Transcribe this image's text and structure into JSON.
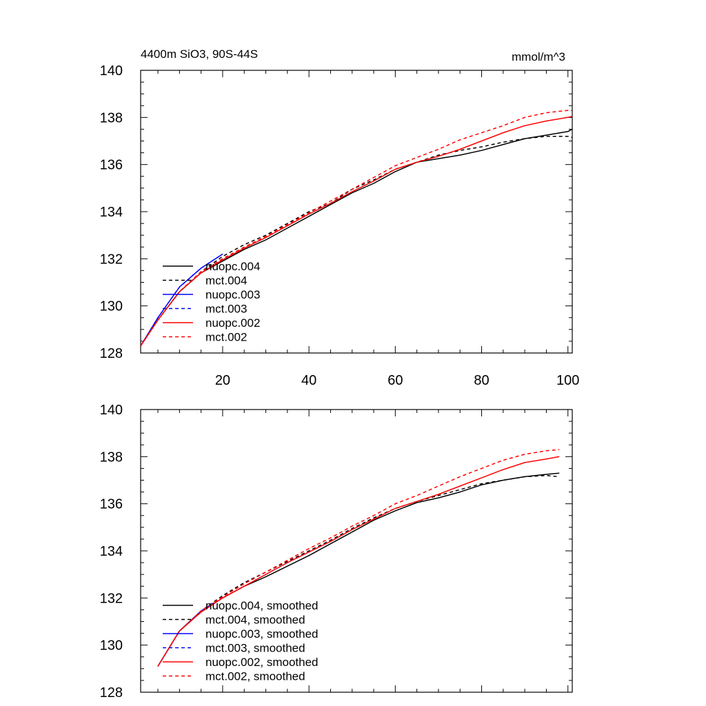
{
  "chart_data": [
    {
      "type": "line",
      "title_left": "4400m SiO3, 90S-44S",
      "title_right": "mmol/m^3",
      "xlim": [
        1,
        101
      ],
      "ylim": [
        128,
        140
      ],
      "x_ticks": [
        20,
        40,
        60,
        80,
        100
      ],
      "y_ticks": [
        128,
        130,
        132,
        134,
        136,
        138,
        140
      ],
      "x_tick_labels_visible": true,
      "legend_position": "lower-left",
      "series": [
        {
          "name": "nuopc.004",
          "color": "#000000",
          "dash": "solid",
          "x": [
            1,
            5,
            10,
            15,
            20,
            25,
            30,
            35,
            40,
            45,
            50,
            55,
            60,
            65,
            70,
            75,
            80,
            85,
            90,
            95,
            100,
            101
          ],
          "y": [
            128.3,
            129.4,
            130.6,
            131.4,
            131.9,
            132.4,
            132.8,
            133.3,
            133.8,
            134.3,
            134.8,
            135.2,
            135.7,
            136.1,
            136.25,
            136.4,
            136.6,
            136.85,
            137.1,
            137.25,
            137.4,
            137.5
          ]
        },
        {
          "name": "mct.004",
          "color": "#000000",
          "dash": "dashed",
          "x": [
            1,
            5,
            10,
            15,
            20,
            25,
            30,
            35,
            40,
            45,
            50,
            55,
            60,
            65,
            70,
            75,
            80,
            85,
            90,
            95,
            100,
            101
          ],
          "y": [
            128.3,
            129.4,
            130.6,
            131.45,
            132.1,
            132.6,
            133.0,
            133.5,
            134.0,
            134.35,
            134.95,
            135.35,
            135.8,
            136.1,
            136.4,
            136.6,
            136.75,
            136.95,
            137.1,
            137.2,
            137.2,
            137.15
          ]
        },
        {
          "name": "nuopc.003",
          "color": "#0000ff",
          "dash": "solid",
          "x": [
            1,
            5,
            10,
            15,
            20
          ],
          "y": [
            128.3,
            129.5,
            130.8,
            131.6,
            132.2
          ]
        },
        {
          "name": "mct.003",
          "color": "#0000ff",
          "dash": "dashed",
          "x": [
            1,
            5,
            10,
            15,
            20
          ],
          "y": [
            128.3,
            129.5,
            130.8,
            131.6,
            132.2
          ]
        },
        {
          "name": "nuopc.002",
          "color": "#ff0000",
          "dash": "solid",
          "x": [
            1,
            5,
            10,
            15,
            20,
            25,
            30,
            35,
            40,
            45,
            50,
            55,
            60,
            65,
            70,
            75,
            80,
            85,
            90,
            95,
            100,
            101
          ],
          "y": [
            128.3,
            129.4,
            130.6,
            131.4,
            131.95,
            132.45,
            132.9,
            133.4,
            133.9,
            134.35,
            134.85,
            135.3,
            135.8,
            136.1,
            136.35,
            136.65,
            137.0,
            137.35,
            137.65,
            137.85,
            138.0,
            138.05
          ]
        },
        {
          "name": "mct.002",
          "color": "#ff0000",
          "dash": "dashed",
          "x": [
            1,
            5,
            10,
            15,
            20,
            25,
            30,
            35,
            40,
            45,
            50,
            55,
            60,
            65,
            70,
            75,
            80,
            85,
            90,
            95,
            100,
            101
          ],
          "y": [
            128.3,
            129.4,
            130.6,
            131.45,
            132.0,
            132.5,
            132.95,
            133.45,
            133.95,
            134.45,
            134.95,
            135.45,
            135.95,
            136.3,
            136.65,
            137.05,
            137.35,
            137.65,
            138.0,
            138.2,
            138.3,
            138.3
          ]
        }
      ]
    },
    {
      "type": "line",
      "xlim": [
        1,
        101
      ],
      "ylim": [
        128,
        140
      ],
      "x_ticks": [
        20,
        40,
        60,
        80,
        100
      ],
      "y_ticks": [
        128,
        130,
        132,
        134,
        136,
        138,
        140
      ],
      "x_tick_labels_visible": false,
      "legend_position": "lower-left",
      "series": [
        {
          "name": "nuopc.004, smoothed",
          "color": "#000000",
          "dash": "solid",
          "x": [
            5,
            10,
            15,
            20,
            25,
            30,
            35,
            40,
            45,
            50,
            55,
            60,
            65,
            70,
            75,
            80,
            85,
            90,
            95,
            98
          ],
          "y": [
            129.1,
            130.6,
            131.4,
            132.0,
            132.5,
            132.9,
            133.35,
            133.8,
            134.3,
            134.8,
            135.3,
            135.7,
            136.05,
            136.25,
            136.5,
            136.8,
            137.0,
            137.15,
            137.25,
            137.3
          ]
        },
        {
          "name": "mct.004, smoothed",
          "color": "#000000",
          "dash": "dashed",
          "x": [
            5,
            10,
            15,
            20,
            25,
            30,
            35,
            40,
            45,
            50,
            55,
            60,
            65,
            70,
            75,
            80,
            85,
            90,
            95,
            98
          ],
          "y": [
            129.1,
            130.6,
            131.45,
            132.1,
            132.65,
            133.1,
            133.55,
            134.0,
            134.45,
            134.95,
            135.4,
            135.8,
            136.1,
            136.35,
            136.6,
            136.85,
            137.0,
            137.15,
            137.2,
            137.15
          ]
        },
        {
          "name": "nuopc.003, smoothed",
          "color": "#0000ff",
          "dash": "solid",
          "x": [
            5,
            10,
            15,
            18
          ],
          "y": [
            129.1,
            130.6,
            131.45,
            131.8
          ]
        },
        {
          "name": "mct.003, smoothed",
          "color": "#0000ff",
          "dash": "dashed",
          "x": [
            5,
            10,
            15,
            18
          ],
          "y": [
            129.1,
            130.6,
            131.45,
            131.8
          ]
        },
        {
          "name": "nuopc.002, smoothed",
          "color": "#ff0000",
          "dash": "solid",
          "x": [
            5,
            10,
            15,
            20,
            25,
            30,
            35,
            40,
            45,
            50,
            55,
            60,
            65,
            70,
            75,
            80,
            85,
            90,
            95,
            98
          ],
          "y": [
            129.1,
            130.6,
            131.4,
            132.0,
            132.5,
            133.0,
            133.5,
            133.95,
            134.4,
            134.9,
            135.35,
            135.8,
            136.1,
            136.4,
            136.75,
            137.1,
            137.45,
            137.75,
            137.9,
            138.0
          ]
        },
        {
          "name": "mct.002, smoothed",
          "color": "#ff0000",
          "dash": "dashed",
          "x": [
            5,
            10,
            15,
            20,
            25,
            30,
            35,
            40,
            45,
            50,
            55,
            60,
            65,
            70,
            75,
            80,
            85,
            90,
            95,
            98
          ],
          "y": [
            129.1,
            130.6,
            131.45,
            132.05,
            132.6,
            133.1,
            133.6,
            134.1,
            134.55,
            135.05,
            135.5,
            136.0,
            136.35,
            136.75,
            137.15,
            137.5,
            137.85,
            138.1,
            138.25,
            138.3
          ]
        }
      ]
    }
  ]
}
